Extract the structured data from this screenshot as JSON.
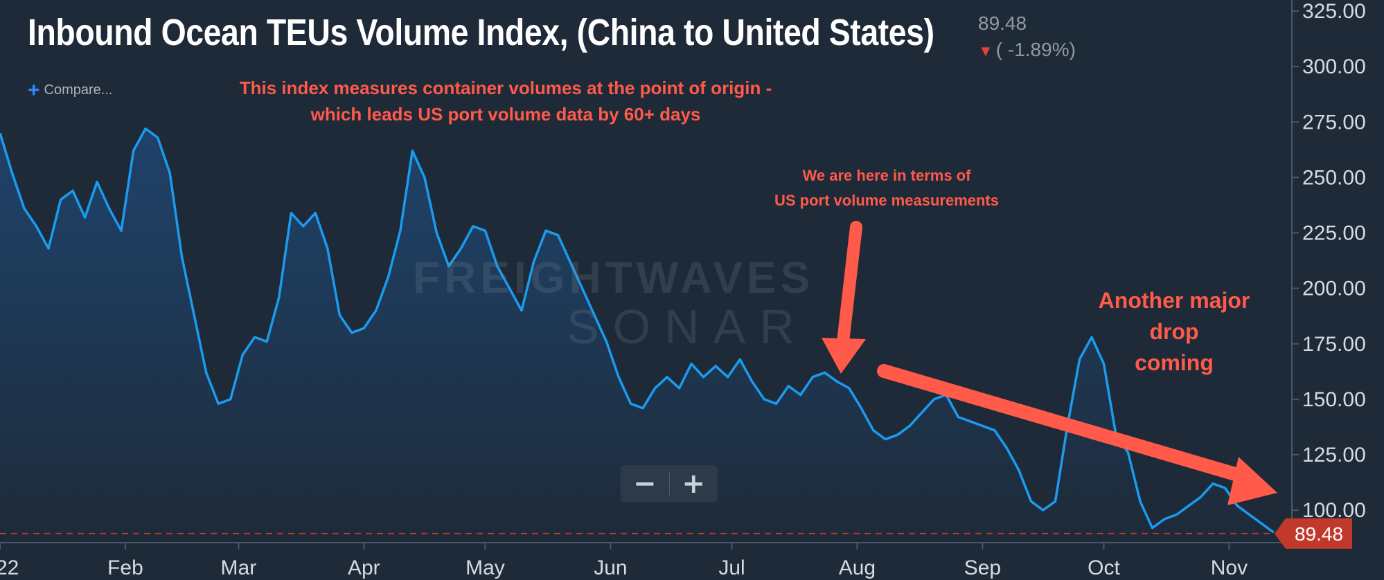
{
  "header": {
    "title": "Inbound Ocean TEUs Volume Index, (China to United States)",
    "last_value": "89.48",
    "change": "( -1.89%)"
  },
  "toolbar": {
    "compare_label": "Compare..."
  },
  "zoom": {
    "minus_label": "−",
    "plus_label": "+"
  },
  "watermark": {
    "line1": "FREIGHTWAVES",
    "line2": "SONAR"
  },
  "annotations": {
    "origin_note": [
      "This index measures container volumes at the point of origin -",
      "which leads US port volume data by 60+ days"
    ],
    "here_note": [
      "We are here in terms of",
      "US port volume measurements"
    ],
    "drop_note": [
      "Another major",
      "drop",
      "coming"
    ]
  },
  "colors": {
    "background": "#1e2a38",
    "line": "#1a9bf0",
    "annotation": "#ff5a4a",
    "price_tag": "#c0392b"
  },
  "chart_data": {
    "type": "area",
    "title": "Inbound Ocean TEUs Volume Index, (China to United States)",
    "x_tick_labels": [
      "22",
      "Feb",
      "Mar",
      "Apr",
      "May",
      "Jun",
      "Jul",
      "Aug",
      "Sep",
      "Oct",
      "Nov"
    ],
    "y_tick_labels": [
      "100.00",
      "125.00",
      "150.00",
      "175.00",
      "200.00",
      "225.00",
      "250.00",
      "275.00",
      "300.00",
      "325.00"
    ],
    "ylim": [
      86,
      330
    ],
    "last_value": 89.48,
    "last_value_label": "89.48",
    "grid": false,
    "series": [
      {
        "x": [
          "2022-01-01",
          "2022-01-04",
          "2022-01-07",
          "2022-01-10",
          "2022-01-13",
          "2022-01-16",
          "2022-01-19",
          "2022-01-22",
          "2022-01-25",
          "2022-01-28",
          "2022-01-31",
          "2022-02-03",
          "2022-02-06",
          "2022-02-09",
          "2022-02-12",
          "2022-02-15",
          "2022-02-18",
          "2022-02-21",
          "2022-02-24",
          "2022-02-27",
          "2022-03-02",
          "2022-03-05",
          "2022-03-08",
          "2022-03-11",
          "2022-03-14",
          "2022-03-17",
          "2022-03-20",
          "2022-03-23",
          "2022-03-26",
          "2022-03-29",
          "2022-04-01",
          "2022-04-04",
          "2022-04-07",
          "2022-04-10",
          "2022-04-13",
          "2022-04-16",
          "2022-04-19",
          "2022-04-22",
          "2022-04-25",
          "2022-04-28",
          "2022-05-01",
          "2022-05-04",
          "2022-05-07",
          "2022-05-10",
          "2022-05-13",
          "2022-05-16",
          "2022-05-19",
          "2022-05-22",
          "2022-05-25",
          "2022-05-28",
          "2022-05-31",
          "2022-06-03",
          "2022-06-06",
          "2022-06-09",
          "2022-06-12",
          "2022-06-15",
          "2022-06-18",
          "2022-06-21",
          "2022-06-24",
          "2022-06-27",
          "2022-06-30",
          "2022-07-03",
          "2022-07-06",
          "2022-07-09",
          "2022-07-12",
          "2022-07-15",
          "2022-07-18",
          "2022-07-21",
          "2022-07-24",
          "2022-07-27",
          "2022-07-30",
          "2022-08-02",
          "2022-08-05",
          "2022-08-08",
          "2022-08-11",
          "2022-08-14",
          "2022-08-17",
          "2022-08-20",
          "2022-08-23",
          "2022-08-26",
          "2022-08-29",
          "2022-09-01",
          "2022-09-04",
          "2022-09-07",
          "2022-09-10",
          "2022-09-13",
          "2022-09-16",
          "2022-09-19",
          "2022-09-22",
          "2022-09-25",
          "2022-09-28",
          "2022-10-01",
          "2022-10-04",
          "2022-10-07",
          "2022-10-10",
          "2022-10-13",
          "2022-10-16",
          "2022-10-19",
          "2022-10-22",
          "2022-10-25",
          "2022-10-28",
          "2022-10-31",
          "2022-11-03",
          "2022-11-06",
          "2022-11-09",
          "2022-11-12"
        ],
        "values": [
          270,
          252,
          236,
          228,
          218,
          240,
          244,
          232,
          248,
          236,
          226,
          262,
          272,
          268,
          252,
          214,
          188,
          162,
          148,
          150,
          170,
          178,
          176,
          196,
          234,
          228,
          234,
          218,
          188,
          180,
          182,
          190,
          205,
          226,
          262,
          250,
          225,
          210,
          218,
          228,
          226,
          210,
          200,
          190,
          212,
          226,
          224,
          212,
          200,
          188,
          176,
          160,
          148,
          146,
          155,
          160,
          155,
          166,
          160,
          165,
          160,
          168,
          158,
          150,
          148,
          156,
          152,
          160,
          162,
          158,
          155,
          146,
          136,
          132,
          134,
          138,
          144,
          150,
          152,
          142,
          140,
          138,
          136,
          128,
          118,
          104,
          100,
          104,
          138,
          168,
          178,
          166,
          134,
          126,
          104,
          92,
          96,
          98,
          102,
          106,
          112,
          110,
          102,
          98,
          94,
          90
        ]
      }
    ]
  }
}
